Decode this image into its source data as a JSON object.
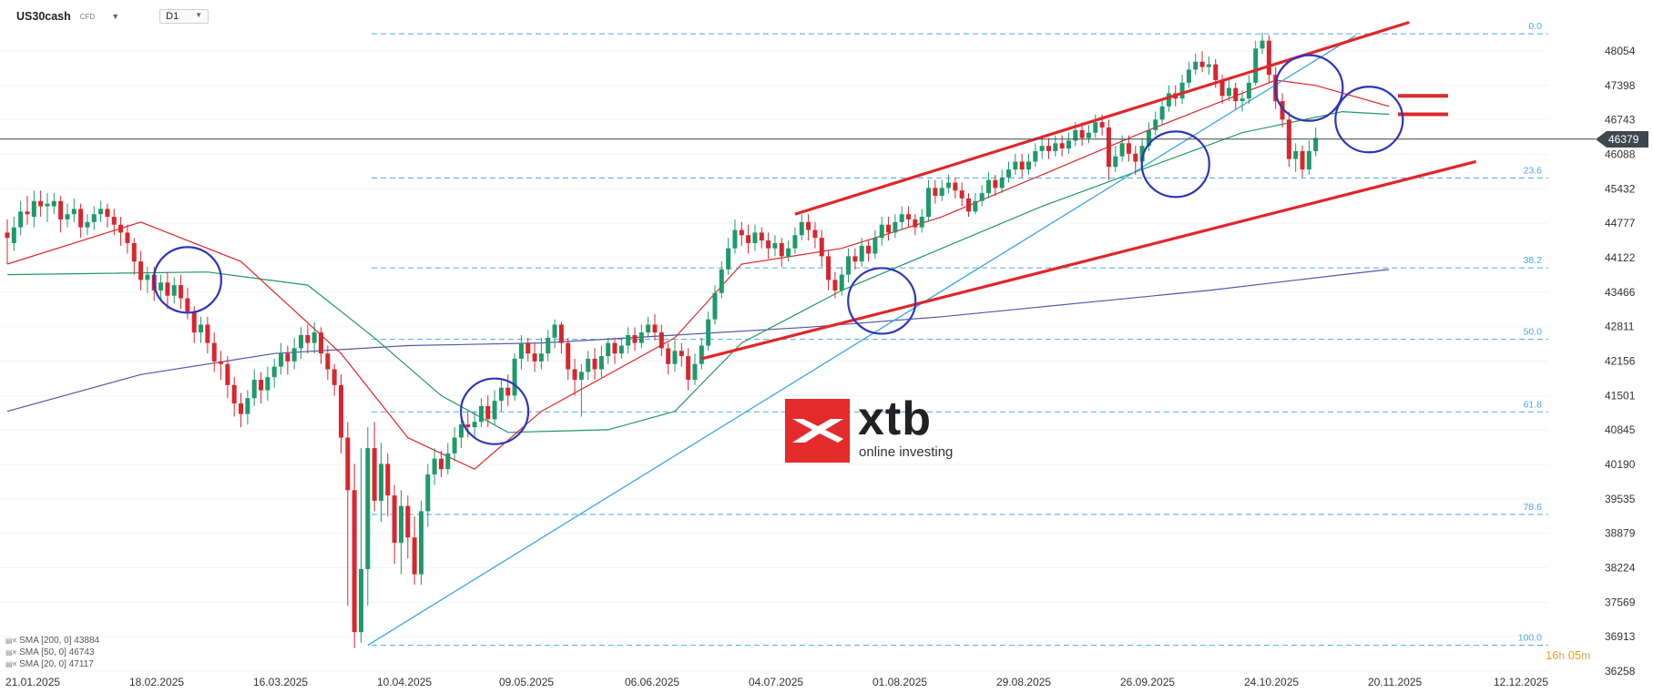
{
  "header": {
    "symbol": "US30cash",
    "symbol_type": "CFD",
    "timeframe": "D1"
  },
  "logo": {
    "brand": "xtb",
    "tagline": "online investing"
  },
  "timer": {
    "hours": "16",
    "hours_unit": "h",
    "minutes": "05",
    "minutes_unit": "m"
  },
  "legend": [
    {
      "label": "SMA [200, 0] 43884"
    },
    {
      "label": "SMA [50, 0] 46743"
    },
    {
      "label": "SMA [20, 0] 47117"
    }
  ],
  "colors": {
    "up": "#1e9a6b",
    "down": "#d8262e",
    "sma200": "#5358a8",
    "sma50": "#1f9a62",
    "sma20": "#e0262b",
    "fib": "#4aa8e8",
    "channel": "#e0262b",
    "trend": "#3ba5e6",
    "circle": "#2f35b8"
  },
  "chart_data": {
    "type": "candlestick",
    "title": "",
    "y_ticks": [
      48054,
      47398,
      46743,
      46088,
      45432,
      44777,
      44122,
      43466,
      42811,
      42156,
      41501,
      40845,
      40190,
      39535,
      38879,
      38224,
      37569,
      36913,
      36258
    ],
    "x_ticks": [
      "21.01.2025",
      "18.02.2025",
      "16.03.2025",
      "10.04.2025",
      "09.05.2025",
      "06.06.2025",
      "04.07.2025",
      "01.08.2025",
      "29.08.2025",
      "26.09.2025",
      "24.10.2025",
      "20.11.2025",
      "12.12.2025"
    ],
    "current_price": "46379",
    "fibonacci": [
      {
        "level": "0.0",
        "price": 48380
      },
      {
        "level": "23.6",
        "price": 45640
      },
      {
        "level": "38.2",
        "price": 43930
      },
      {
        "level": "50.0",
        "price": 42570
      },
      {
        "level": "61.8",
        "price": 41190
      },
      {
        "level": "78.6",
        "price": 39240
      },
      {
        "level": "100.0",
        "price": 36750
      }
    ],
    "candles": [
      [
        44600,
        44500,
        44850,
        44000
      ],
      [
        44400,
        44700,
        44900,
        44250
      ],
      [
        44700,
        45000,
        45200,
        44550
      ],
      [
        45000,
        44950,
        45300,
        44750
      ],
      [
        44900,
        45200,
        45400,
        44700
      ],
      [
        45200,
        45100,
        45400,
        44900
      ],
      [
        45100,
        45150,
        45350,
        44800
      ],
      [
        45100,
        45200,
        45350,
        44950
      ],
      [
        45200,
        44850,
        45300,
        44600
      ],
      [
        44850,
        44950,
        45150,
        44700
      ],
      [
        44950,
        45050,
        45250,
        44800
      ],
      [
        45050,
        44700,
        45150,
        44500
      ],
      [
        44700,
        44800,
        44950,
        44550
      ],
      [
        44800,
        44950,
        45100,
        44650
      ],
      [
        44950,
        45050,
        45200,
        44800
      ],
      [
        45050,
        44900,
        45150,
        44700
      ],
      [
        44900,
        44750,
        45050,
        44550
      ],
      [
        44750,
        44600,
        44900,
        44350
      ],
      [
        44600,
        44400,
        44750,
        44200
      ],
      [
        44400,
        44050,
        44500,
        43800
      ],
      [
        44050,
        43700,
        44250,
        43500
      ],
      [
        43700,
        43800,
        43950,
        43450
      ],
      [
        43800,
        43500,
        43950,
        43300
      ],
      [
        43500,
        43650,
        43800,
        43300
      ],
      [
        43650,
        43400,
        43850,
        43150
      ],
      [
        43400,
        43600,
        43750,
        43250
      ],
      [
        43600,
        43350,
        43800,
        43150
      ],
      [
        43350,
        43100,
        43550,
        42950
      ],
      [
        43100,
        42700,
        43200,
        42500
      ],
      [
        42700,
        42850,
        43000,
        42500
      ],
      [
        42850,
        42500,
        43000,
        42300
      ],
      [
        42500,
        42150,
        42700,
        41950
      ],
      [
        42150,
        42100,
        42350,
        41800
      ],
      [
        42100,
        41700,
        42250,
        41450
      ],
      [
        41700,
        41350,
        41850,
        41100
      ],
      [
        41350,
        41150,
        41550,
        40900
      ],
      [
        41150,
        41450,
        41600,
        40950
      ],
      [
        41450,
        41800,
        42000,
        41300
      ],
      [
        41800,
        41600,
        41950,
        41350
      ],
      [
        41600,
        41850,
        42050,
        41400
      ],
      [
        41850,
        42050,
        42200,
        41650
      ],
      [
        42050,
        42300,
        42500,
        41900
      ],
      [
        42300,
        42150,
        42450,
        41900
      ],
      [
        42150,
        42400,
        42600,
        42000
      ],
      [
        42400,
        42650,
        42800,
        42200
      ],
      [
        42650,
        42500,
        42850,
        42300
      ],
      [
        42500,
        42700,
        42900,
        42300
      ],
      [
        42700,
        42300,
        42800,
        42100
      ],
      [
        42300,
        42000,
        42450,
        41800
      ],
      [
        42000,
        41700,
        42100,
        41500
      ],
      [
        41700,
        40700,
        41900,
        40400
      ],
      [
        40700,
        39700,
        41000,
        37500
      ],
      [
        39700,
        37000,
        40200,
        36700
      ],
      [
        37000,
        38200,
        40500,
        36800
      ],
      [
        38200,
        40500,
        40900,
        37500
      ],
      [
        40500,
        39500,
        41000,
        39300
      ],
      [
        39500,
        40200,
        40600,
        39100
      ],
      [
        40200,
        39600,
        40400,
        39200
      ],
      [
        39600,
        38700,
        39800,
        38300
      ],
      [
        38700,
        39400,
        39700,
        38100
      ],
      [
        39400,
        38800,
        39600,
        38400
      ],
      [
        38800,
        38100,
        39200,
        37900
      ],
      [
        38100,
        39300,
        39500,
        37900
      ],
      [
        39300,
        40000,
        40200,
        39000
      ],
      [
        40000,
        40300,
        40500,
        39800
      ],
      [
        40300,
        40100,
        40450,
        39950
      ],
      [
        40100,
        40400,
        40600,
        40000
      ],
      [
        40400,
        40700,
        40900,
        40250
      ],
      [
        40700,
        40950,
        41100,
        40500
      ],
      [
        40950,
        40900,
        41200,
        40700
      ],
      [
        40900,
        41000,
        41200,
        40700
      ],
      [
        41000,
        41300,
        41450,
        40900
      ],
      [
        41300,
        41050,
        41500,
        40900
      ],
      [
        41050,
        41400,
        41600,
        40950
      ],
      [
        41400,
        41650,
        41800,
        41200
      ],
      [
        41650,
        41500,
        41900,
        41300
      ],
      [
        41500,
        42200,
        42300,
        41400
      ],
      [
        42200,
        42500,
        42650,
        42000
      ],
      [
        42500,
        42300,
        42600,
        42150
      ],
      [
        42300,
        42150,
        42500,
        41950
      ],
      [
        42150,
        42300,
        42600,
        42000
      ],
      [
        42300,
        42600,
        42750,
        42150
      ],
      [
        42600,
        42850,
        42950,
        42400
      ],
      [
        42850,
        42500,
        42900,
        42300
      ],
      [
        42500,
        42000,
        42600,
        41800
      ],
      [
        42000,
        41800,
        42200,
        41500
      ],
      [
        41800,
        41950,
        42100,
        41100
      ],
      [
        41950,
        42200,
        42350,
        41800
      ],
      [
        42200,
        42000,
        42400,
        41800
      ],
      [
        42000,
        42250,
        42450,
        41850
      ],
      [
        42250,
        42500,
        42600,
        42100
      ],
      [
        42500,
        42300,
        42600,
        42100
      ],
      [
        42300,
        42450,
        42600,
        42200
      ],
      [
        42450,
        42650,
        42800,
        42300
      ],
      [
        42650,
        42500,
        42800,
        42350
      ],
      [
        42500,
        42700,
        42850,
        42400
      ],
      [
        42700,
        42850,
        43000,
        42600
      ],
      [
        42850,
        42700,
        43050,
        42550
      ],
      [
        42700,
        42400,
        42850,
        42250
      ],
      [
        42400,
        42100,
        42500,
        41900
      ],
      [
        42100,
        42350,
        42550,
        41950
      ],
      [
        42350,
        42250,
        42500,
        42050
      ],
      [
        42250,
        41800,
        42400,
        41600
      ],
      [
        41800,
        42100,
        42300,
        41700
      ],
      [
        42100,
        42450,
        42600,
        42000
      ],
      [
        42450,
        42950,
        43100,
        42350
      ],
      [
        42950,
        43450,
        43600,
        42850
      ],
      [
        43450,
        43900,
        44050,
        43350
      ],
      [
        43900,
        44300,
        44500,
        43800
      ],
      [
        44300,
        44650,
        44850,
        44200
      ],
      [
        44650,
        44550,
        44800,
        44350
      ],
      [
        44550,
        44400,
        44750,
        44200
      ],
      [
        44400,
        44600,
        44750,
        44250
      ],
      [
        44600,
        44450,
        44700,
        44300
      ],
      [
        44450,
        44300,
        44600,
        44100
      ],
      [
        44300,
        44400,
        44550,
        44150
      ],
      [
        44400,
        44150,
        44500,
        43950
      ],
      [
        44150,
        44300,
        44450,
        44050
      ],
      [
        44300,
        44550,
        44700,
        44200
      ],
      [
        44550,
        44800,
        44950,
        44450
      ],
      [
        44800,
        44650,
        44950,
        44450
      ],
      [
        44650,
        44500,
        44800,
        44300
      ],
      [
        44500,
        44150,
        44650,
        43950
      ],
      [
        44150,
        43700,
        44250,
        43500
      ],
      [
        43700,
        43500,
        43850,
        43350
      ],
      [
        43500,
        43800,
        43950,
        43400
      ],
      [
        43800,
        44150,
        44300,
        43650
      ],
      [
        44150,
        44050,
        44300,
        43900
      ],
      [
        44050,
        44350,
        44500,
        43950
      ],
      [
        44350,
        44200,
        44450,
        44050
      ],
      [
        44200,
        44500,
        44650,
        44100
      ],
      [
        44500,
        44750,
        44900,
        44350
      ],
      [
        44750,
        44600,
        44900,
        44450
      ],
      [
        44600,
        44800,
        44950,
        44500
      ],
      [
        44800,
        44950,
        45100,
        44650
      ],
      [
        44950,
        44850,
        45100,
        44700
      ],
      [
        44850,
        44700,
        44950,
        44550
      ],
      [
        44700,
        44900,
        45050,
        44600
      ],
      [
        44900,
        45450,
        45600,
        44800
      ],
      [
        45450,
        45300,
        45600,
        45150
      ],
      [
        45300,
        45450,
        45600,
        45200
      ],
      [
        45450,
        45550,
        45700,
        45350
      ],
      [
        45550,
        45400,
        45650,
        45250
      ],
      [
        45400,
        45250,
        45550,
        45100
      ],
      [
        45250,
        45000,
        45350,
        44900
      ],
      [
        45000,
        45200,
        45350,
        44950
      ],
      [
        45200,
        45350,
        45500,
        45100
      ],
      [
        45350,
        45600,
        45750,
        45250
      ],
      [
        45600,
        45450,
        45700,
        45300
      ],
      [
        45450,
        45650,
        45800,
        45350
      ],
      [
        45650,
        45800,
        45950,
        45550
      ],
      [
        45800,
        45950,
        46100,
        45700
      ],
      [
        45950,
        45800,
        46100,
        45650
      ],
      [
        45800,
        45950,
        46100,
        45700
      ],
      [
        45950,
        46150,
        46300,
        45850
      ],
      [
        46150,
        46250,
        46400,
        46000
      ],
      [
        46250,
        46150,
        46400,
        46000
      ],
      [
        46150,
        46300,
        46450,
        46050
      ],
      [
        46300,
        46200,
        46450,
        46050
      ],
      [
        46200,
        46350,
        46500,
        46100
      ],
      [
        46350,
        46550,
        46700,
        46250
      ],
      [
        46550,
        46400,
        46700,
        46250
      ],
      [
        46400,
        46500,
        46650,
        46300
      ],
      [
        46500,
        46700,
        46850,
        46400
      ],
      [
        46700,
        46600,
        46850,
        46450
      ],
      [
        46600,
        45850,
        46750,
        45600
      ],
      [
        45850,
        46050,
        46250,
        45750
      ],
      [
        46050,
        46300,
        46450,
        45950
      ],
      [
        46300,
        46100,
        46450,
        45950
      ],
      [
        46100,
        45950,
        46250,
        45700
      ],
      [
        45950,
        46250,
        46400,
        45850
      ],
      [
        46250,
        46550,
        46700,
        46150
      ],
      [
        46550,
        46750,
        46900,
        46450
      ],
      [
        46750,
        47000,
        47150,
        46650
      ],
      [
        47000,
        47250,
        47400,
        46900
      ],
      [
        47250,
        47150,
        47400,
        47000
      ],
      [
        47150,
        47450,
        47600,
        47050
      ],
      [
        47450,
        47700,
        47850,
        47350
      ],
      [
        47700,
        47850,
        48000,
        47600
      ],
      [
        47850,
        47750,
        48050,
        47650
      ],
      [
        47750,
        47800,
        47950,
        47600
      ],
      [
        47800,
        47500,
        47900,
        47350
      ],
      [
        47500,
        47200,
        47600,
        47050
      ],
      [
        47200,
        47350,
        47500,
        47100
      ],
      [
        47350,
        47100,
        47450,
        46950
      ],
      [
        47100,
        47150,
        47300,
        46900
      ],
      [
        47150,
        47450,
        47600,
        47050
      ],
      [
        47450,
        48100,
        48250,
        47400
      ],
      [
        48100,
        48250,
        48400,
        48000
      ],
      [
        48250,
        47600,
        48350,
        47450
      ],
      [
        47600,
        47100,
        47750,
        46950
      ],
      [
        47100,
        46750,
        47250,
        46600
      ],
      [
        46750,
        46000,
        46900,
        45850
      ],
      [
        46000,
        46150,
        46300,
        45750
      ],
      [
        46150,
        45800,
        46250,
        45650
      ],
      [
        45800,
        46150,
        46350,
        45700
      ],
      [
        46150,
        46400,
        46600,
        46050
      ]
    ],
    "sma20": [
      [
        0,
        44000
      ],
      [
        20,
        44800
      ],
      [
        35,
        44050
      ],
      [
        50,
        42300
      ],
      [
        60,
        40700
      ],
      [
        70,
        40100
      ],
      [
        80,
        41200
      ],
      [
        100,
        42600
      ],
      [
        110,
        44000
      ],
      [
        125,
        44300
      ],
      [
        140,
        44900
      ],
      [
        155,
        45700
      ],
      [
        170,
        46500
      ],
      [
        180,
        47000
      ],
      [
        190,
        47500
      ],
      [
        196,
        47400
      ],
      [
        207,
        47000
      ]
    ],
    "sma50": [
      [
        0,
        43800
      ],
      [
        30,
        43850
      ],
      [
        45,
        43600
      ],
      [
        55,
        42600
      ],
      [
        65,
        41500
      ],
      [
        75,
        40800
      ],
      [
        90,
        40850
      ],
      [
        100,
        41200
      ],
      [
        110,
        42500
      ],
      [
        125,
        43500
      ],
      [
        140,
        44300
      ],
      [
        155,
        45100
      ],
      [
        170,
        45800
      ],
      [
        185,
        46500
      ],
      [
        200,
        46900
      ],
      [
        207,
        46850
      ]
    ],
    "sma200": [
      [
        0,
        41200
      ],
      [
        20,
        41900
      ],
      [
        40,
        42300
      ],
      [
        60,
        42450
      ],
      [
        80,
        42500
      ],
      [
        100,
        42650
      ],
      [
        120,
        42800
      ],
      [
        140,
        43000
      ],
      [
        160,
        43250
      ],
      [
        180,
        43500
      ],
      [
        200,
        43800
      ],
      [
        207,
        43900
      ]
    ],
    "channel_upper": [
      [
        118,
        44950
      ],
      [
        210,
        48600
      ]
    ],
    "channel_lower": [
      [
        104,
        42200
      ],
      [
        220,
        45950
      ]
    ],
    "trendline": [
      [
        54,
        36750
      ],
      [
        202,
        48350
      ]
    ],
    "resistance_marks": [
      47200,
      46850
    ],
    "circles": [
      [
        27,
        43700
      ],
      [
        73,
        41200
      ],
      [
        131,
        43300
      ],
      [
        175,
        45900
      ],
      [
        195,
        47350
      ],
      [
        204,
        46750
      ]
    ]
  }
}
